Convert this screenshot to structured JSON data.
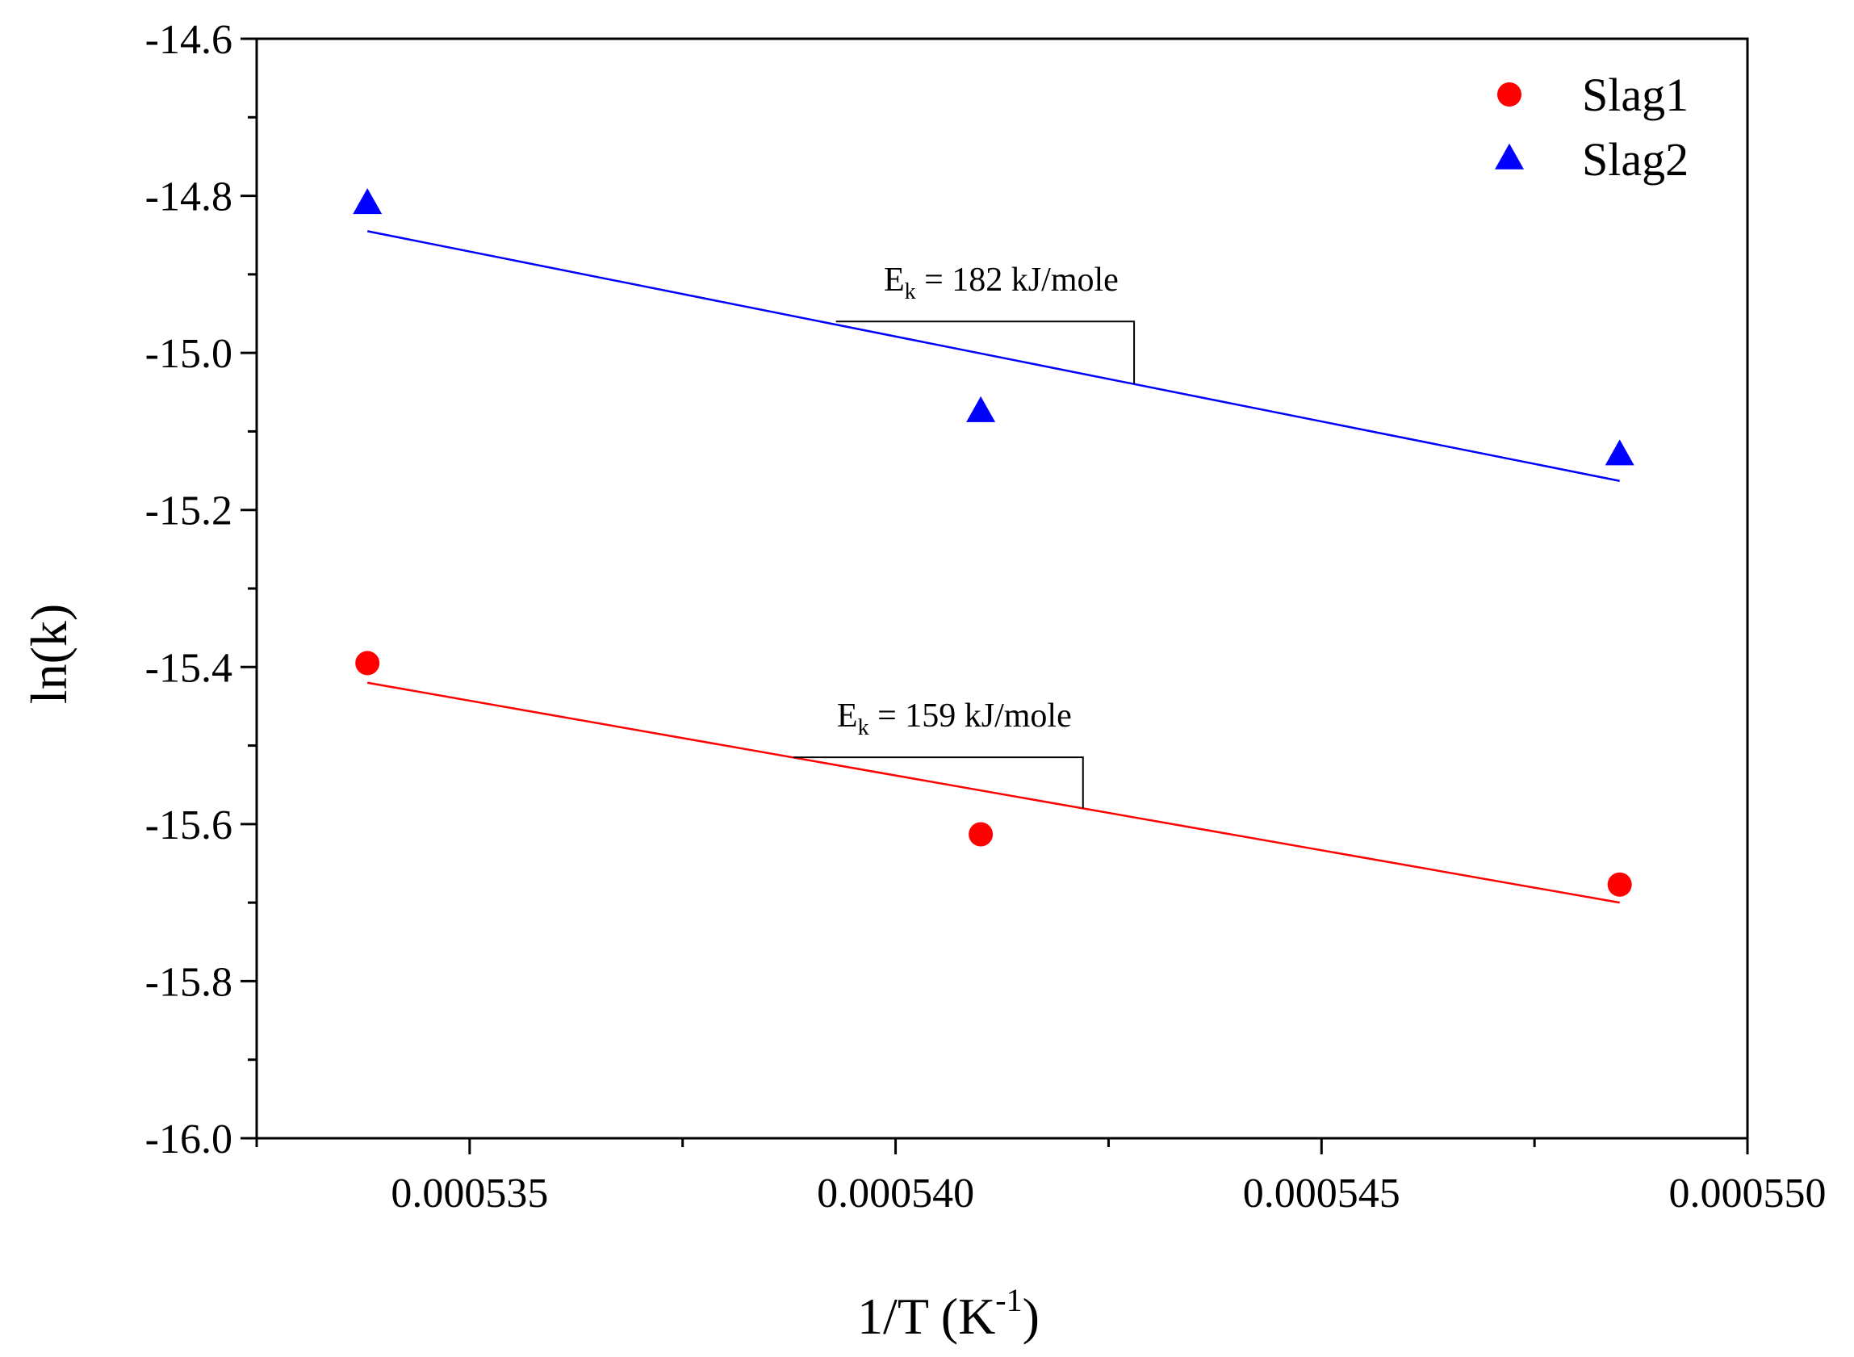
{
  "chart_data": {
    "type": "scatter",
    "title": "",
    "xlabel": "1/T (K",
    "xlabel_sup": "-1",
    "xlabel_close": ")",
    "ylabel": "ln(k)",
    "xlim": [
      0.0005325,
      0.00055
    ],
    "ylim": [
      -16.0,
      -14.6
    ],
    "x_ticks": [
      0.000535,
      0.00054,
      0.000545,
      0.00055
    ],
    "x_tick_labels": [
      "0.000535",
      "0.000540",
      "0.000545",
      "0.000550"
    ],
    "y_ticks": [
      -14.6,
      -14.8,
      -15.0,
      -15.2,
      -15.4,
      -15.6,
      -15.8,
      -16.0
    ],
    "y_tick_labels": [
      "-14.6",
      "-14.8",
      "-15.0",
      "-15.2",
      "-15.4",
      "-15.6",
      "-15.8",
      "-16.0"
    ],
    "grid": false,
    "legend_position": "top-right",
    "series": [
      {
        "name": "Slag1",
        "marker": "circle",
        "color": "#ff0000",
        "x": [
          0.0005338,
          0.000541,
          0.0005485
        ],
        "y": [
          -15.395,
          -15.613,
          -15.677
        ],
        "fit": {
          "x": [
            0.0005338,
            0.0005485
          ],
          "y": [
            -15.42,
            -15.7
          ]
        },
        "annotation": {
          "label_main": "E",
          "label_sub": "k",
          "label_rest": " = 159 kJ/mole",
          "triangle_x": [
            0.0005388,
            0.0005422
          ],
          "triangle_y_top": -15.515
        }
      },
      {
        "name": "Slag2",
        "marker": "triangle",
        "color": "#0000ff",
        "x": [
          0.0005338,
          0.000541,
          0.0005485
        ],
        "y": [
          -14.81,
          -15.075,
          -15.13
        ],
        "fit": {
          "x": [
            0.0005338,
            0.0005485
          ],
          "y": [
            -14.845,
            -15.163
          ]
        },
        "annotation": {
          "label_main": "E",
          "label_sub": "k",
          "label_rest": " = 182 kJ/mole",
          "triangle_x": [
            0.0005393,
            0.0005428
          ],
          "triangle_y_top": -14.96
        }
      }
    ]
  }
}
